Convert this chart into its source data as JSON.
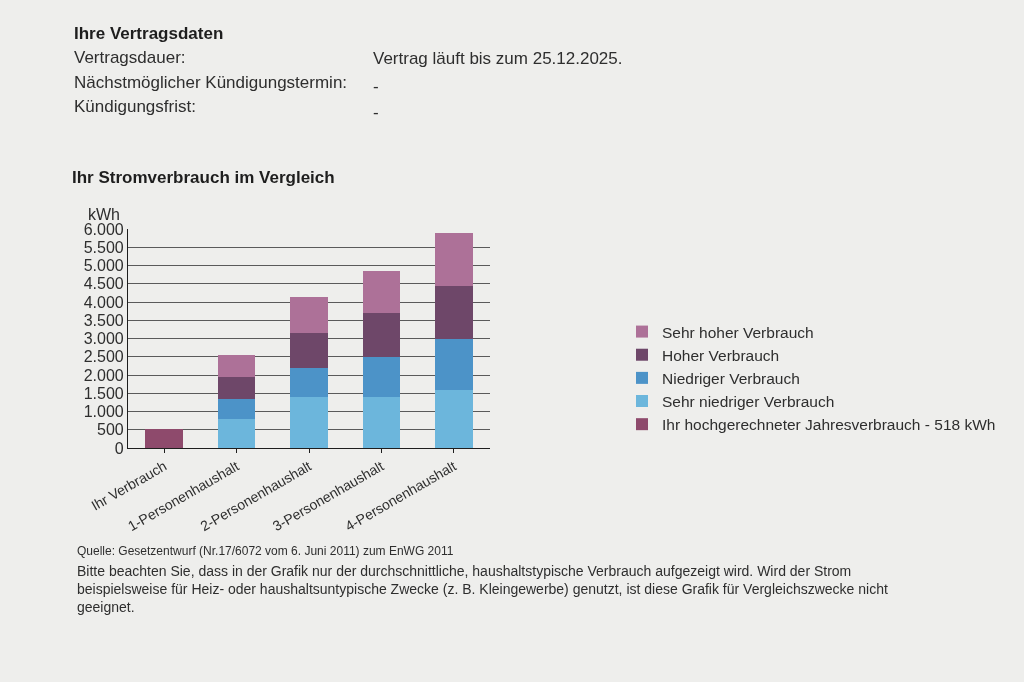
{
  "chart_data": {
    "type": "bar",
    "stacked": true,
    "title": "Ihr Stromverbrauch im Vergleich",
    "ylabel": "kWh",
    "categories": [
      "Ihr Verbrauch",
      "1-Personenhaushalt",
      "2-Personenhaushalt",
      "3-Personenhaushalt",
      "4-Personenhaushalt"
    ],
    "series": [
      {
        "name": "Ihr hochgerechneter Jahresverbrauch - 518 kWh",
        "color": "#8e4a6c",
        "values": [
          518,
          null,
          null,
          null,
          null
        ]
      },
      {
        "name": "Sehr niedriger Verbrauch",
        "color": "#6cb6dc",
        "values": [
          null,
          800,
          1400,
          1400,
          1600
        ]
      },
      {
        "name": "Niedriger Verbrauch",
        "color": "#4c93c8",
        "values": [
          null,
          550,
          800,
          1100,
          1400
        ]
      },
      {
        "name": "Hoher Verbrauch",
        "color": "#6e4769",
        "values": [
          null,
          600,
          950,
          1200,
          1450
        ]
      },
      {
        "name": "Sehr hoher Verbrauch",
        "color": "#ad7198",
        "values": [
          null,
          600,
          1000,
          1150,
          1450
        ]
      }
    ],
    "ylim": [
      0,
      6000
    ],
    "yticks": [
      0,
      500,
      {
        "value": 1000,
        "label": "1.000"
      },
      {
        "value": 1500,
        "label": "1.500"
      },
      {
        "value": 2000,
        "label": "2.000"
      },
      {
        "value": 2500,
        "label": "2.500"
      },
      {
        "value": 3000,
        "label": "3.000"
      },
      {
        "value": 3500,
        "label": "3.500"
      },
      {
        "value": 4000,
        "label": "4.000"
      },
      {
        "value": 4500,
        "label": "4.500"
      },
      {
        "value": 5000,
        "label": "5.000"
      },
      {
        "value": 5500,
        "label": "5.500"
      },
      {
        "value": 6000,
        "label": "6.000"
      }
    ],
    "grid": "y",
    "legend": "right",
    "annotations": [
      "Ihre Vertragsdaten",
      "Vertragsdauer:",
      "Vertrag läuft bis zum 25.12.2025.",
      "Nächstmöglicher Kündigungstermin:",
      "-",
      "Kündigungsfrist:",
      "-",
      "Quelle: Gesetzentwurf (Nr.17/6072 vom 6. Juni 2011) zum EnWG 2011",
      "Bitte beachten Sie, dass in der Grafik nur der durchschnittliche, haushaltstypische Verbrauch aufgezeigt wird. Wird der Strom beispielsweise für Heiz- oder haushaltsuntypische Zwecke (z. B. Kleingewerbe) genutzt, ist diese Grafik für Vergleichszwecke nicht geeignet."
    ]
  }
}
